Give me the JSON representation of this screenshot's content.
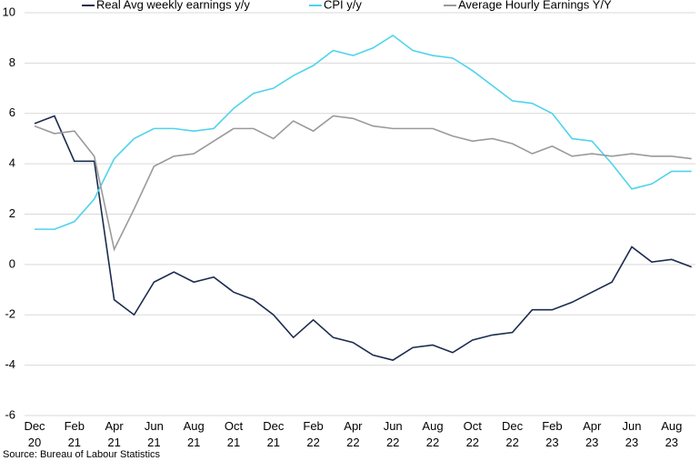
{
  "chart_data": {
    "type": "line",
    "categories": [
      "Dec 20",
      null,
      "Feb 21",
      null,
      "Apr 21",
      null,
      "Jun 21",
      null,
      "Aug 21",
      null,
      "Oct 21",
      null,
      "Dec 21",
      null,
      "Feb 22",
      null,
      "Apr 22",
      null,
      "Jun 22",
      null,
      "Aug 22",
      null,
      "Oct 22",
      null,
      "Dec 22",
      null,
      "Feb 23",
      null,
      "Apr 23",
      null,
      "Jun 23",
      null,
      "Aug 23",
      null
    ],
    "series": [
      {
        "name": "Real Avg weekly earnings y/y",
        "color": "#1c2b4f",
        "values": [
          5.6,
          5.9,
          4.1,
          4.1,
          -1.4,
          -2.0,
          -0.7,
          -0.3,
          -0.7,
          -0.5,
          -1.1,
          -1.4,
          -2.0,
          -2.9,
          -2.2,
          -2.9,
          -3.1,
          -3.6,
          -3.8,
          -3.3,
          -3.2,
          -3.5,
          -3.0,
          -2.8,
          -2.7,
          -1.8,
          -1.8,
          -1.5,
          -1.1,
          -0.7,
          0.7,
          0.1,
          0.2,
          -0.1
        ]
      },
      {
        "name": "CPI y/y",
        "color": "#4fd3ec",
        "values": [
          1.4,
          1.4,
          1.7,
          2.6,
          4.2,
          5.0,
          5.4,
          5.4,
          5.3,
          5.4,
          6.2,
          6.8,
          7.0,
          7.5,
          7.9,
          8.5,
          8.3,
          8.6,
          9.1,
          8.5,
          8.3,
          8.2,
          7.7,
          7.1,
          6.5,
          6.4,
          6.0,
          5.0,
          4.9,
          4.0,
          3.0,
          3.2,
          3.7,
          3.7
        ]
      },
      {
        "name": "Average Hourly Earnings Y/Y",
        "color": "#9a9a9a",
        "values": [
          5.5,
          5.2,
          5.3,
          4.3,
          0.6,
          2.2,
          3.9,
          4.3,
          4.4,
          4.9,
          5.4,
          5.4,
          5.0,
          5.7,
          5.3,
          5.9,
          5.8,
          5.5,
          5.4,
          5.4,
          5.4,
          5.1,
          4.9,
          5.0,
          4.8,
          4.4,
          4.7,
          4.3,
          4.4,
          4.3,
          4.4,
          4.3,
          4.3,
          4.2
        ]
      }
    ],
    "ylim": [
      -6,
      10
    ],
    "yticks": [
      -6,
      -4,
      -2,
      0,
      2,
      4,
      6,
      8,
      10
    ],
    "grid": true,
    "legend": "top",
    "source": "Source: Bureau of Labour Statistics"
  }
}
